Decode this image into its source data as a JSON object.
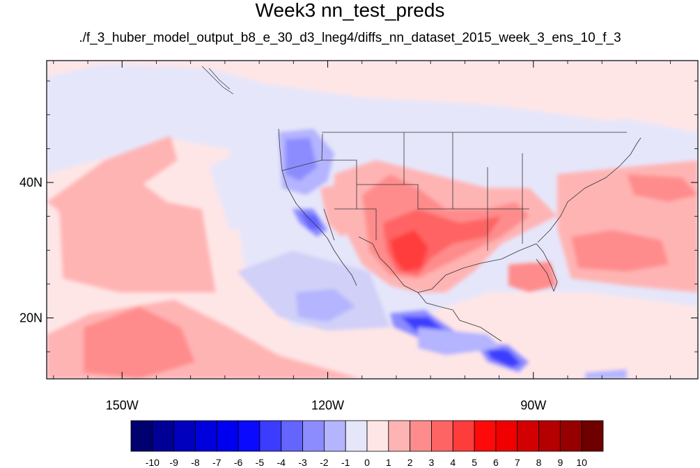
{
  "title": "Week3 nn_test_preds",
  "subtitle": "./f_3_huber_model_output_b8_e_30_d3_lneg4/diffs_nn_dataset_2015_week_3_ens_10_f_3",
  "map": {
    "lon_range": [
      -161,
      -66
    ],
    "lat_range": [
      11,
      58
    ],
    "x_ticks": [
      {
        "lon": -150,
        "label": "150W"
      },
      {
        "lon": -120,
        "label": "120W"
      },
      {
        "lon": -90,
        "label": "90W"
      }
    ],
    "y_ticks": [
      {
        "lat": 40,
        "label": "40N"
      },
      {
        "lat": 20,
        "label": "20N"
      }
    ]
  },
  "colorbar": {
    "labels": [
      "-10",
      "-9",
      "-8",
      "-7",
      "-6",
      "-5",
      "-4",
      "-3",
      "-2",
      "-1",
      "0",
      "1",
      "2",
      "3",
      "4",
      "5",
      "6",
      "7",
      "8",
      "9",
      "10"
    ],
    "colors": [
      "#00006e",
      "#000096",
      "#0000be",
      "#0000dc",
      "#0000f0",
      "#0a0aff",
      "#3c3cff",
      "#6464ff",
      "#8c8cff",
      "#b4b4ff",
      "#e6e6fa",
      "#ffe6e6",
      "#ffb4b4",
      "#ff8c8c",
      "#ff6464",
      "#ff3c3c",
      "#ff0a0a",
      "#f00000",
      "#d20000",
      "#b40000",
      "#960000",
      "#6e0000"
    ]
  },
  "background_color": "#e6e6fa"
}
